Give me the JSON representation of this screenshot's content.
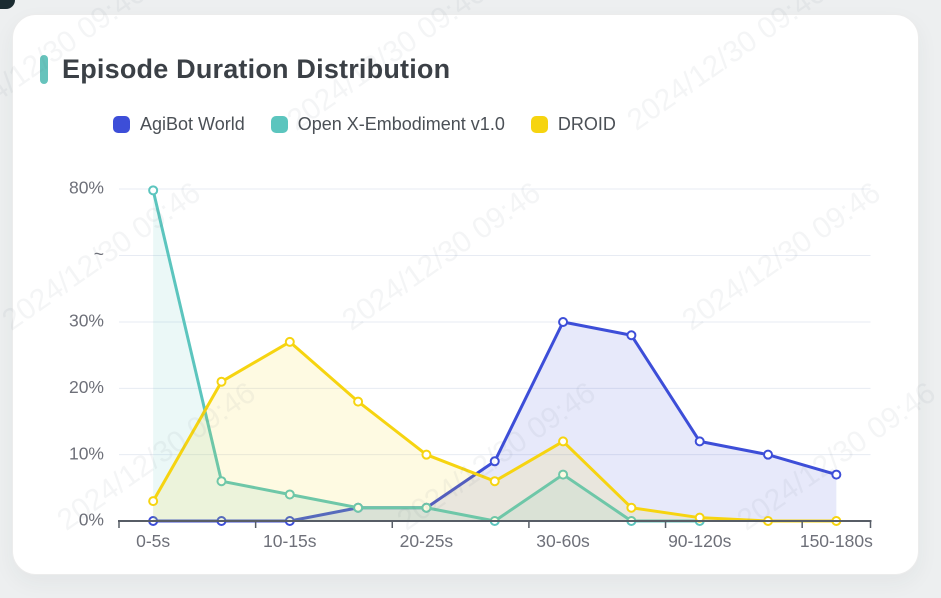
{
  "page": {
    "background": "#edeff0",
    "card_background": "#ffffff"
  },
  "header": {
    "title": "Episode Duration Distribution",
    "accent_color": "#66c3bc"
  },
  "legend": {
    "position": "top",
    "items": [
      {
        "label": "AgiBot World",
        "color": "#3d4ed8"
      },
      {
        "label": "Open X-Embodiment v1.0",
        "color": "#5cc5be"
      },
      {
        "label": "DROID",
        "color": "#f6d410"
      }
    ]
  },
  "chart_data": {
    "type": "line",
    "title": "Episode Duration Distribution",
    "unit": "%",
    "grid": true,
    "legend_position": "top",
    "x_axis": {
      "visible_labels": [
        "0-5s",
        "10-15s",
        "20-25s",
        "30-60s",
        "90-120s",
        "150-180s"
      ],
      "n_categories": 11,
      "label_every_n": 2
    },
    "y_axis": {
      "tick_labels": [
        "0%",
        "10%",
        "20%",
        "30%",
        "~",
        "80%"
      ],
      "break_between": [
        30,
        80
      ],
      "ylim_lower_segment": [
        0,
        30
      ],
      "upper_tick_value": 80
    },
    "series": [
      {
        "name": "AgiBot World",
        "color": "#3d4ed8",
        "values": [
          0,
          0,
          0,
          2,
          2,
          9,
          30,
          28,
          12,
          10,
          7
        ]
      },
      {
        "name": "Open X-Embodiment v1.0",
        "color": "#5cc5be",
        "values": [
          79.5,
          6,
          4,
          2,
          2,
          0,
          7,
          0,
          0,
          null,
          null
        ]
      },
      {
        "name": "DROID",
        "color": "#f6d410",
        "values": [
          3,
          21,
          27,
          18,
          10,
          6,
          12,
          2,
          0.5,
          0,
          0
        ]
      }
    ],
    "marker_style": "hollow-circle",
    "area_fill": true
  },
  "watermark": {
    "text": "2024/12/30 09:46"
  }
}
